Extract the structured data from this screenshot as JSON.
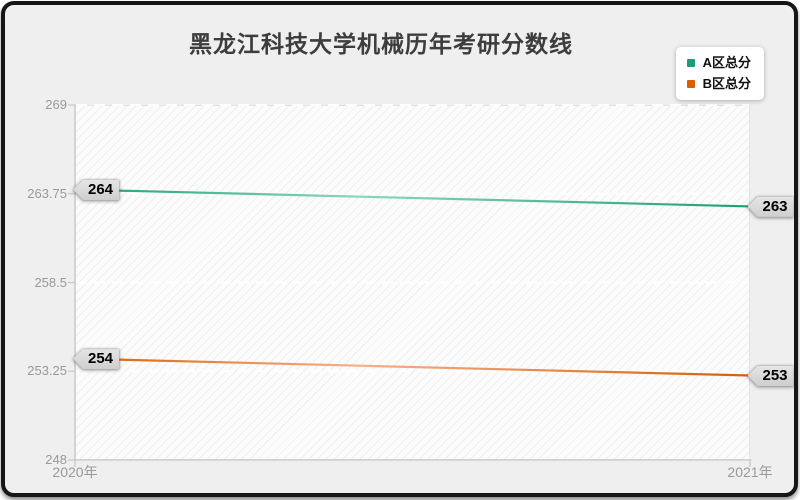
{
  "title": "黑龙江科技大学机械历年考研分数线",
  "legend": {
    "items": [
      {
        "label": "A区总分",
        "color": "#1b9e77"
      },
      {
        "label": "B区总分",
        "color": "#d95f02"
      }
    ]
  },
  "axes": {
    "y_ticks": [
      "269",
      "263.75",
      "258.5",
      "253.25",
      "248"
    ],
    "x_ticks": [
      "2020年",
      "2021年"
    ]
  },
  "colors": {
    "axis": "#c9c9c9",
    "tick_label": "#999999",
    "gridline": "#ffffff",
    "tag_bg": "#d9d9d9"
  },
  "chart_data": {
    "type": "line",
    "title": "黑龙江科技大学机械历年考研分数线",
    "x": [
      "2020年",
      "2021年"
    ],
    "series": [
      {
        "name": "A区总分",
        "values": [
          264,
          263
        ],
        "color": "#1b9e77",
        "color_light": "#8cd8b8"
      },
      {
        "name": "B区总分",
        "values": [
          254,
          253
        ],
        "color": "#d95f02",
        "color_light": "#f5b18c"
      }
    ],
    "point_labels": [
      [
        "264",
        "263"
      ],
      [
        "254",
        "253"
      ]
    ],
    "ylim": [
      248,
      269
    ],
    "y_tick_values": [
      269,
      263.75,
      258.5,
      253.25,
      248
    ],
    "grid": "horizontal dashed",
    "legend_position": "top-right",
    "xlabel": "",
    "ylabel": ""
  }
}
